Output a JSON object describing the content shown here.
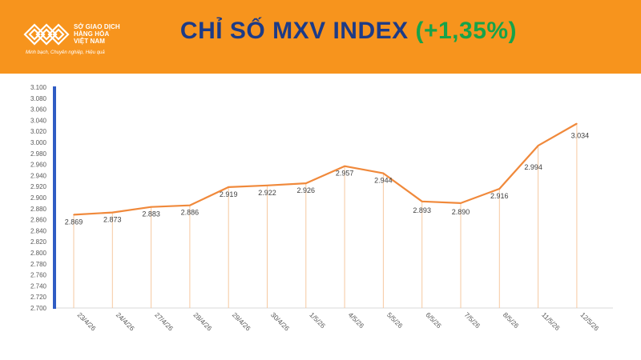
{
  "header": {
    "logo_name": "SỞ GIAO DỊCH\nHÀNG HÓA\nVIỆT NAM",
    "logo_slogan": "Minh bạch, Chuyên nghiệp, Hiệu quả",
    "title": "CHỈ SỐ MXV INDEX",
    "change": "(+1,35%)",
    "colors": {
      "band": "#f7941d",
      "title": "#1d3b87",
      "change": "#17a34a"
    }
  },
  "chart_data": {
    "type": "line",
    "title": "CHỈ SỐ MXV INDEX (+1,35%)",
    "categories": [
      "23/4/26",
      "24/4/26",
      "27/4/26",
      "28/4/26",
      "29/4/26",
      "30/4/26",
      "1/5/26",
      "4/5/26",
      "5/5/26",
      "6/5/26",
      "7/5/26",
      "8/5/26",
      "11/5/26",
      "12/5/26"
    ],
    "values": [
      2869,
      2873,
      2883,
      2886,
      2919,
      2922,
      2926,
      2957,
      2944,
      2893,
      2890,
      2916,
      2994,
      3034
    ],
    "value_labels": [
      "2.869",
      "2.873",
      "2.883",
      "2.886",
      "2.919",
      "2.922",
      "2.926",
      "2.957",
      "2.944",
      "2.893",
      "2.890",
      "2.916",
      "2.994",
      "3.034"
    ],
    "yticks": [
      "2.700",
      "2.720",
      "2.740",
      "2.760",
      "2.780",
      "2.800",
      "2.820",
      "2.840",
      "2.860",
      "2.880",
      "2.900",
      "2.920",
      "2.940",
      "2.960",
      "2.980",
      "3.000",
      "3.020",
      "3.040",
      "3.060",
      "3.080",
      "3.100"
    ],
    "ylim": [
      2700,
      3100
    ],
    "xlabel": "",
    "ylabel": "",
    "grid": false,
    "line_color": "#f0893b",
    "drop_line_color": "#f6c9a0",
    "axis_bar_color": "#2f5cc4"
  }
}
